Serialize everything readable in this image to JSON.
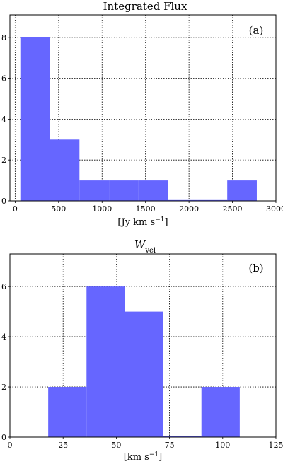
{
  "chart_data": [
    {
      "type": "bar",
      "title": "Integrated Flux",
      "xlabel": "[Jy km s",
      "xlabel_sup": "−1",
      "xlabel_end": "]",
      "panel_label": "(a)",
      "xlim": [
        -60,
        3000
      ],
      "ylim": [
        0,
        9.1
      ],
      "x_ticks": [
        0,
        500,
        1000,
        1500,
        2000,
        2500,
        3000
      ],
      "y_ticks": [
        0,
        2,
        4,
        6,
        8
      ],
      "bins": [
        {
          "x0": 60,
          "x1": 400,
          "count": 8
        },
        {
          "x0": 400,
          "x1": 740,
          "count": 3
        },
        {
          "x0": 740,
          "x1": 1080,
          "count": 1
        },
        {
          "x0": 1080,
          "x1": 1420,
          "count": 1
        },
        {
          "x0": 1420,
          "x1": 1760,
          "count": 1
        },
        {
          "x0": 1760,
          "x1": 2100,
          "count": 0
        },
        {
          "x0": 2100,
          "x1": 2440,
          "count": 0
        },
        {
          "x0": 2440,
          "x1": 2780,
          "count": 1
        }
      ],
      "bar_color": "#6666ff",
      "grid": true
    },
    {
      "type": "bar",
      "title": "W",
      "title_sub": "vel",
      "xlabel": "[km s",
      "xlabel_sup": "−1",
      "xlabel_end": "]",
      "panel_label": "(b)",
      "xlim": [
        0,
        125
      ],
      "ylim": [
        0,
        7.3
      ],
      "x_ticks": [
        0,
        25,
        50,
        75,
        100,
        125
      ],
      "y_ticks": [
        0,
        2,
        4,
        6
      ],
      "bins": [
        {
          "x0": 18,
          "x1": 36,
          "count": 2
        },
        {
          "x0": 36,
          "x1": 54,
          "count": 6
        },
        {
          "x0": 54,
          "x1": 72,
          "count": 5
        },
        {
          "x0": 72,
          "x1": 90,
          "count": 0
        },
        {
          "x0": 90,
          "x1": 108,
          "count": 2
        }
      ],
      "bar_color": "#6666ff",
      "grid": true
    }
  ]
}
